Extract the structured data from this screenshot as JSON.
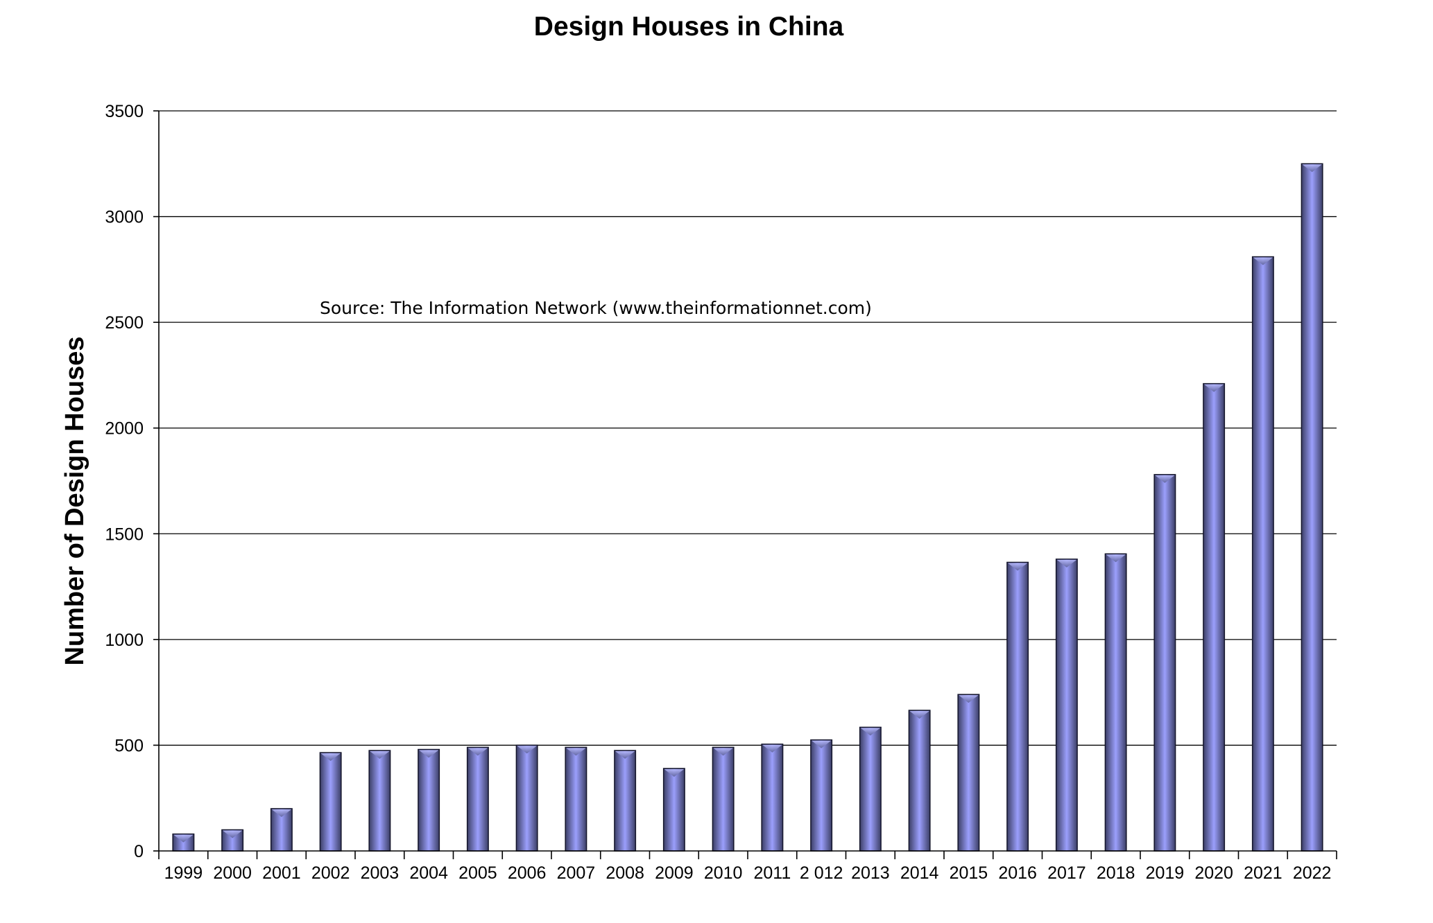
{
  "chart_data": {
    "type": "bar",
    "title": "Design Houses in China",
    "xlabel": "",
    "ylabel": "Number of Design Houses",
    "annotation": "Source: The Information Network (www.theinformationnet.com)",
    "categories": [
      "1999",
      "2000",
      "2001",
      "2002",
      "2003",
      "2004",
      "2005",
      "2006",
      "2007",
      "2008",
      "2009",
      "2010",
      "2011",
      "2 012",
      "2013",
      "2014",
      "2015",
      "2016",
      "2017",
      "2018",
      "2019",
      "2020",
      "2021",
      "2022"
    ],
    "values": [
      80,
      100,
      200,
      465,
      475,
      480,
      490,
      500,
      490,
      475,
      390,
      490,
      505,
      525,
      585,
      665,
      740,
      1365,
      1380,
      1405,
      1780,
      2210,
      2810,
      3250
    ],
    "ylim": [
      0,
      3500
    ],
    "yticks": [
      0,
      500,
      1000,
      1500,
      2000,
      2500,
      3000,
      3500
    ],
    "grid": true,
    "legend": "none",
    "bar_colors": {
      "edge": "#3c3f66",
      "center": "#9b9ffc",
      "outline": "#14152b"
    }
  }
}
